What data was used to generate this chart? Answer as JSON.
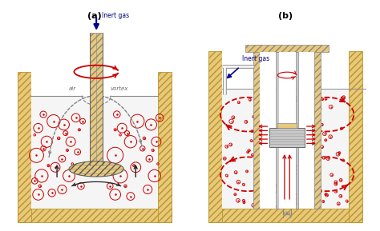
{
  "title_a": "(a)",
  "title_b": "(b)",
  "label_inert_gas": "Inert gas",
  "label_air": "air",
  "label_vortex": "vortex",
  "bg_color": "#ffffff",
  "wall_color": "#e8c87a",
  "wall_dark": "#b8952a",
  "bubble_edge": "#cc0000",
  "arrow_red": "#cc0000",
  "arrow_dark": "#222222",
  "arrow_blue": "#00008b",
  "figsize": [
    4.74,
    2.89
  ],
  "dpi": 100
}
